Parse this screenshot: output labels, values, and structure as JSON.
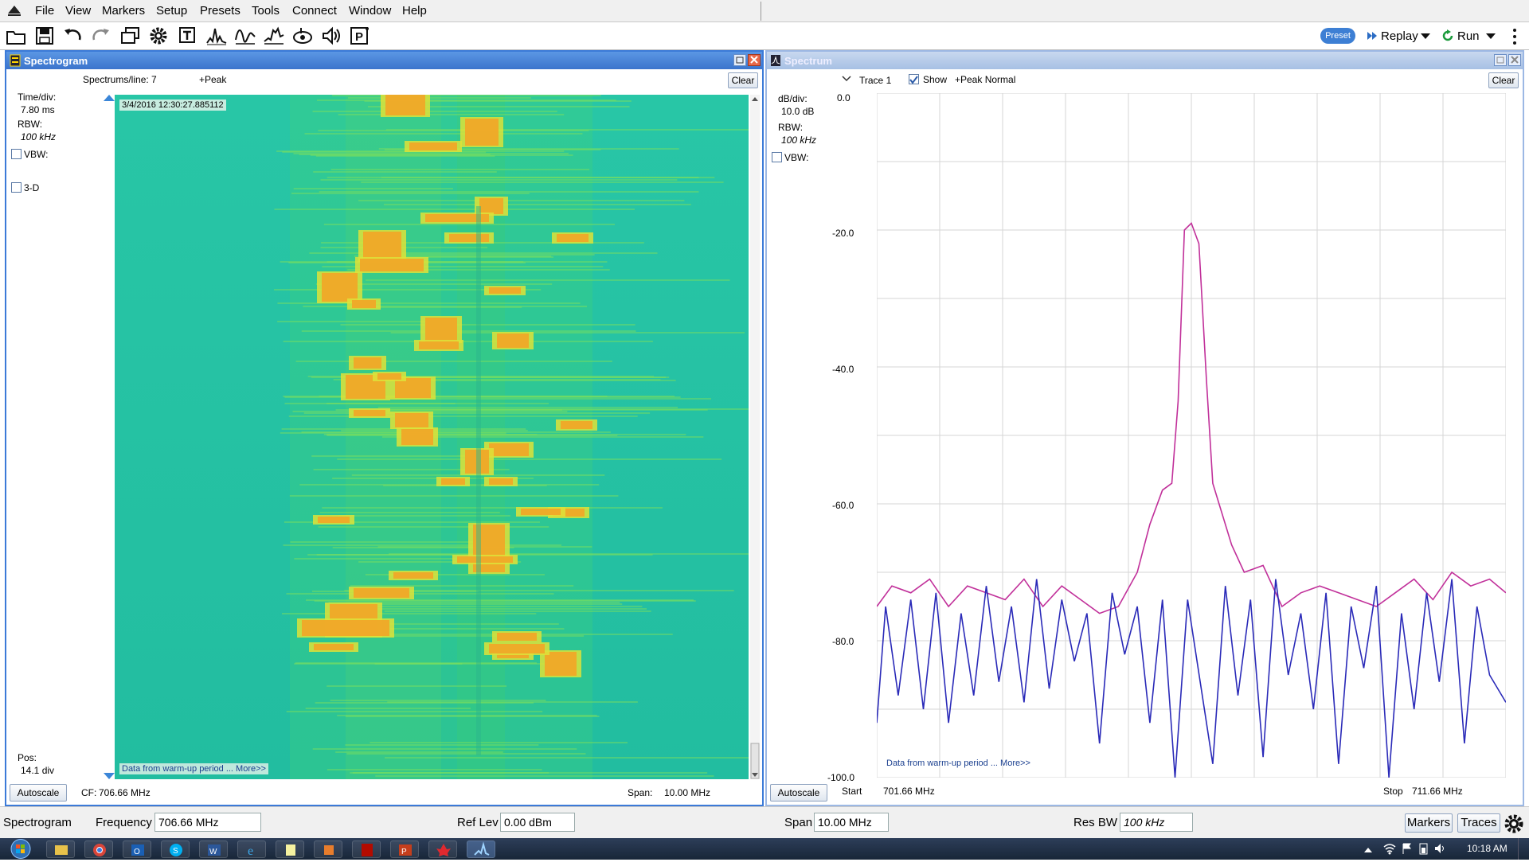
{
  "menu": {
    "items": [
      "File",
      "View",
      "Markers",
      "Setup",
      "Presets",
      "Tools",
      "Connect",
      "Window",
      "Help"
    ]
  },
  "toolbar": {
    "icons": [
      "open-icon",
      "save-icon",
      "undo-icon",
      "redo-icon",
      "windows-icon",
      "settings-icon",
      "trigger-icon",
      "dpx-icon",
      "measure-icon",
      "spectrum-icon",
      "record-icon",
      "audio-icon",
      "preset-p-icon"
    ],
    "preset_label": "Preset",
    "replay_label": "Replay",
    "run_label": "Run"
  },
  "spectrogram": {
    "title": "Spectrogram",
    "spectrums_per_line": "Spectrums/line: 7",
    "detector": "+Peak",
    "clear_label": "Clear",
    "time_div_label": "Time/div:",
    "time_div_value": "7.80 ms",
    "rbw_label": "RBW:",
    "rbw_value": "100 kHz",
    "vbw_label": "VBW:",
    "three_d_label": "3-D",
    "timestamp": "3/4/2016 12:30:27.885112",
    "warmup_note": "Data from warm-up period ... More>>",
    "pos_label": "Pos:",
    "pos_value": "14.1 div",
    "autoscale_label": "Autoscale",
    "cf_label": "CF:",
    "cf_value": "706.66 MHz",
    "span_label": "Span:",
    "span_value": "10.00 MHz"
  },
  "spectrum": {
    "title": "Spectrum",
    "trace_label": "Trace 1",
    "show_label": "Show",
    "trace_mode": "+Peak Normal",
    "clear_label": "Clear",
    "db_div_label": "dB/div:",
    "db_div_value": "10.0 dB",
    "rbw_label": "RBW:",
    "rbw_value": "100 kHz",
    "vbw_label": "VBW:",
    "y_ticks": [
      "0.0",
      "-20.0",
      "-40.0",
      "-60.0",
      "-80.0",
      "-100.0"
    ],
    "warmup_note": "Data from warm-up period ... More>>",
    "autoscale_label": "Autoscale",
    "start_label": "Start",
    "start_value": "701.66 MHz",
    "stop_label": "Stop",
    "stop_value": "711.66 MHz",
    "accent_pink": "#c1309a",
    "accent_blue": "#2a2ab8"
  },
  "statusbar": {
    "mode": "Spectrogram",
    "frequency_label": "Frequency",
    "frequency_value": "706.66 MHz",
    "reflev_label": "Ref Lev",
    "reflev_value": "0.00 dBm",
    "span_label": "Span",
    "span_value": "10.00 MHz",
    "resbw_label": "Res BW",
    "resbw_value": "100 kHz",
    "markers_label": "Markers",
    "traces_label": "Traces"
  },
  "taskbar": {
    "clock": "10:18 AM",
    "apps": [
      "start-orb-icon",
      "explorer-icon",
      "chrome-icon",
      "outlook-icon",
      "skype-icon",
      "word-icon",
      "ie-icon",
      "notepad-icon",
      "paint-icon",
      "acrobat-icon",
      "powerpoint-icon",
      "maple-icon",
      "signalvu-icon"
    ]
  },
  "chart_data": {
    "type": "line",
    "ylim": [
      -100,
      0
    ],
    "xlim": [
      701.66,
      711.66
    ],
    "series": [
      {
        "values_x": [
          701.66,
          701.9,
          702.2,
          702.5,
          702.8,
          703.1,
          703.4,
          703.7,
          704.0,
          704.3,
          704.6,
          704.9,
          705.2,
          705.5,
          705.8,
          706.0,
          706.2,
          706.35,
          706.45,
          706.55,
          706.66,
          706.78,
          706.9,
          707.0,
          707.1,
          707.3,
          707.5,
          707.8,
          708.1,
          708.4,
          708.7,
          709.0,
          709.3,
          709.6,
          709.9,
          710.2,
          710.5,
          710.8,
          711.1,
          711.4,
          711.66
        ],
        "values": [
          -75,
          -72,
          -73,
          -71,
          -75,
          -72,
          -73,
          -74,
          -71,
          -75,
          -72,
          -74,
          -76,
          -75,
          -70,
          -63,
          -58,
          -57,
          -45,
          -20,
          -19,
          -22,
          -42,
          -57,
          -60,
          -66,
          -70,
          -69,
          -75,
          -73,
          -72,
          -73,
          -74,
          -75,
          -73,
          -71,
          -74,
          -70,
          -72,
          -71,
          -73
        ]
      },
      {
        "values_x": [
          701.66,
          701.8,
          702.0,
          702.2,
          702.4,
          702.6,
          702.8,
          703.0,
          703.2,
          703.4,
          703.6,
          703.8,
          704.0,
          704.2,
          704.4,
          704.6,
          704.8,
          705.0,
          705.2,
          705.4,
          705.6,
          705.8,
          706.0,
          706.2,
          706.4,
          706.6,
          706.8,
          707.0,
          707.2,
          707.4,
          707.6,
          707.8,
          708.0,
          708.2,
          708.4,
          708.6,
          708.8,
          709.0,
          709.2,
          709.4,
          709.6,
          709.8,
          710.0,
          710.2,
          710.4,
          710.6,
          710.8,
          711.0,
          711.2,
          711.4,
          711.66
        ],
        "values": [
          -92,
          -75,
          -88,
          -74,
          -90,
          -73,
          -92,
          -76,
          -88,
          -72,
          -86,
          -75,
          -89,
          -71,
          -87,
          -74,
          -83,
          -76,
          -95,
          -73,
          -82,
          -75,
          -92,
          -74,
          -100,
          -74,
          -86,
          -98,
          -72,
          -88,
          -74,
          -97,
          -71,
          -85,
          -76,
          -90,
          -73,
          -98,
          -75,
          -84,
          -72,
          -100,
          -76,
          -90,
          -73,
          -86,
          -71,
          -95,
          -75,
          -85,
          -89
        ]
      }
    ]
  }
}
